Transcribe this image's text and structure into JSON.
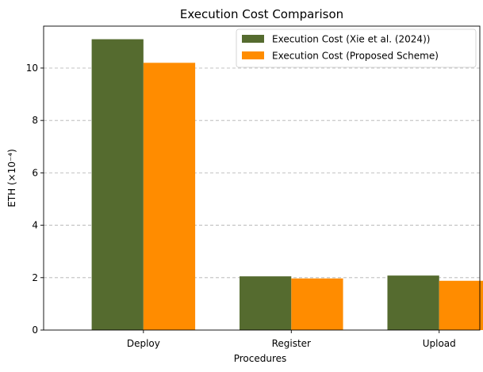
{
  "chart_data": {
    "type": "bar",
    "title": "Execution Cost Comparison",
    "xlabel": "Procedures",
    "ylabel": "ETH (×10⁻⁴)",
    "categories": [
      "Deploy",
      "Register",
      "Upload"
    ],
    "series": [
      {
        "name": "Execution Cost (Xie et al. (2024))",
        "color": "#556b2f",
        "values": [
          11.1,
          2.05,
          2.08
        ]
      },
      {
        "name": "Execution Cost (Proposed Scheme)",
        "color": "#ff8c00",
        "values": [
          10.2,
          1.97,
          1.88
        ]
      }
    ],
    "ylim": [
      0,
      11.6
    ],
    "yticks": [
      0,
      2,
      4,
      6,
      8,
      10
    ],
    "grid": "y-dashed",
    "legend": "top-right"
  }
}
